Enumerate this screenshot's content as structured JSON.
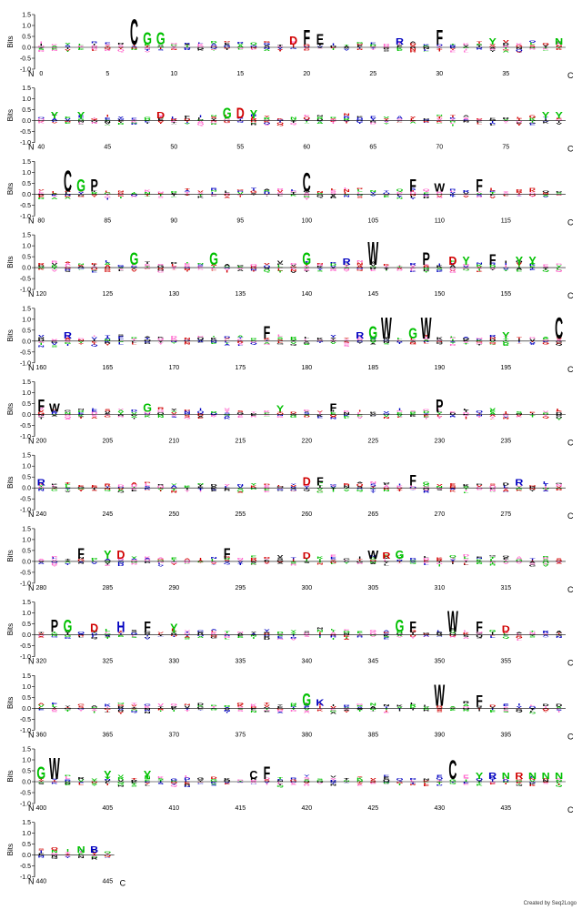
{
  "chart_data": {
    "type": "sequence-logo",
    "ylabel": "Bits",
    "y_ticks": [
      "1.5",
      "1.0",
      "0.5",
      "0.0",
      "-0.5",
      "-1.0"
    ],
    "ylim": [
      -1.0,
      1.5
    ],
    "n_label": "N",
    "c_label": "C",
    "positions_per_row": 40,
    "total_positions": 446,
    "rows": [
      {
        "start": 0,
        "labels": [
          "0",
          "5",
          "10",
          "15",
          "20",
          "25",
          "30",
          "35"
        ],
        "major": [
          {
            "pos": 7,
            "letter": "C",
            "bits": 1.2,
            "color": "#000000"
          },
          {
            "pos": 8,
            "letter": "G",
            "bits": 0.6,
            "color": "#00c000"
          },
          {
            "pos": 9,
            "letter": "G",
            "bits": 0.6,
            "color": "#00c000"
          },
          {
            "pos": 19,
            "letter": "D",
            "bits": 0.4,
            "color": "#d00000"
          },
          {
            "pos": 20,
            "letter": "F",
            "bits": 0.7,
            "color": "#000000"
          },
          {
            "pos": 21,
            "letter": "E",
            "bits": 0.5,
            "color": "#000000"
          },
          {
            "pos": 27,
            "letter": "R",
            "bits": 0.3,
            "color": "#0000c0"
          },
          {
            "pos": 30,
            "letter": "F",
            "bits": 0.7,
            "color": "#000000"
          },
          {
            "pos": 34,
            "letter": "Y",
            "bits": 0.3,
            "color": "#00c000"
          },
          {
            "pos": 39,
            "letter": "N",
            "bits": 0.3,
            "color": "#00c000"
          }
        ]
      },
      {
        "start": 40,
        "labels": [
          "40",
          "45",
          "50",
          "55",
          "60",
          "65",
          "70",
          "75"
        ],
        "major": [
          {
            "pos": 41,
            "letter": "Y",
            "bits": 0.3,
            "color": "#00c000"
          },
          {
            "pos": 43,
            "letter": "Y",
            "bits": 0.3,
            "color": "#00c000"
          },
          {
            "pos": 49,
            "letter": "D",
            "bits": 0.3,
            "color": "#d00000"
          },
          {
            "pos": 54,
            "letter": "G",
            "bits": 0.5,
            "color": "#00c000"
          },
          {
            "pos": 55,
            "letter": "D",
            "bits": 0.5,
            "color": "#d00000"
          },
          {
            "pos": 56,
            "letter": "Y",
            "bits": 0.4,
            "color": "#00c000"
          },
          {
            "pos": 78,
            "letter": "Y",
            "bits": 0.3,
            "color": "#00c000"
          },
          {
            "pos": 79,
            "letter": "Y",
            "bits": 0.3,
            "color": "#00c000"
          }
        ]
      },
      {
        "start": 80,
        "labels": [
          "80",
          "85",
          "90",
          "95",
          "100",
          "105",
          "110",
          "115"
        ],
        "major": [
          {
            "pos": 82,
            "letter": "C",
            "bits": 1.0,
            "color": "#000000"
          },
          {
            "pos": 83,
            "letter": "G",
            "bits": 0.6,
            "color": "#00c000"
          },
          {
            "pos": 84,
            "letter": "P",
            "bits": 0.6,
            "color": "#000000"
          },
          {
            "pos": 100,
            "letter": "C",
            "bits": 0.9,
            "color": "#000000"
          },
          {
            "pos": 108,
            "letter": "F",
            "bits": 0.6,
            "color": "#000000"
          },
          {
            "pos": 110,
            "letter": "W",
            "bits": 0.4,
            "color": "#000000"
          },
          {
            "pos": 113,
            "letter": "F",
            "bits": 0.6,
            "color": "#000000"
          }
        ]
      },
      {
        "start": 120,
        "labels": [
          "120",
          "125",
          "130",
          "135",
          "140",
          "145",
          "150",
          "155"
        ],
        "major": [
          {
            "pos": 127,
            "letter": "G",
            "bits": 0.6,
            "color": "#00c000"
          },
          {
            "pos": 133,
            "letter": "G",
            "bits": 0.6,
            "color": "#00c000"
          },
          {
            "pos": 140,
            "letter": "G",
            "bits": 0.6,
            "color": "#00c000"
          },
          {
            "pos": 143,
            "letter": "R",
            "bits": 0.3,
            "color": "#0000c0"
          },
          {
            "pos": 145,
            "letter": "W",
            "bits": 1.1,
            "color": "#000000"
          },
          {
            "pos": 149,
            "letter": "P",
            "bits": 0.6,
            "color": "#000000"
          },
          {
            "pos": 151,
            "letter": "D",
            "bits": 0.4,
            "color": "#d00000"
          },
          {
            "pos": 152,
            "letter": "Y",
            "bits": 0.4,
            "color": "#00c000"
          },
          {
            "pos": 154,
            "letter": "F",
            "bits": 0.5,
            "color": "#000000"
          },
          {
            "pos": 156,
            "letter": "Y",
            "bits": 0.4,
            "color": "#00c000"
          },
          {
            "pos": 157,
            "letter": "Y",
            "bits": 0.4,
            "color": "#00c000"
          }
        ]
      },
      {
        "start": 160,
        "labels": [
          "160",
          "165",
          "170",
          "175",
          "180",
          "185",
          "190",
          "195"
        ],
        "major": [
          {
            "pos": 162,
            "letter": "R",
            "bits": 0.3,
            "color": "#0000c0"
          },
          {
            "pos": 177,
            "letter": "F",
            "bits": 0.6,
            "color": "#000000"
          },
          {
            "pos": 184,
            "letter": "R",
            "bits": 0.3,
            "color": "#0000c0"
          },
          {
            "pos": 185,
            "letter": "G",
            "bits": 0.6,
            "color": "#00c000"
          },
          {
            "pos": 186,
            "letter": "W",
            "bits": 1.0,
            "color": "#000000"
          },
          {
            "pos": 188,
            "letter": "G",
            "bits": 0.5,
            "color": "#00c000"
          },
          {
            "pos": 189,
            "letter": "W",
            "bits": 1.0,
            "color": "#000000"
          },
          {
            "pos": 195,
            "letter": "Y",
            "bits": 0.3,
            "color": "#00c000"
          },
          {
            "pos": 199,
            "letter": "C",
            "bits": 1.0,
            "color": "#000000"
          }
        ]
      },
      {
        "start": 200,
        "labels": [
          "200",
          "205",
          "210",
          "215",
          "220",
          "225",
          "230",
          "235"
        ],
        "major": [
          {
            "pos": 200,
            "letter": "F",
            "bits": 0.6,
            "color": "#000000"
          },
          {
            "pos": 201,
            "letter": "W",
            "bits": 0.4,
            "color": "#000000"
          },
          {
            "pos": 208,
            "letter": "G",
            "bits": 0.4,
            "color": "#00c000"
          },
          {
            "pos": 218,
            "letter": "Y",
            "bits": 0.3,
            "color": "#00c000"
          },
          {
            "pos": 222,
            "letter": "F",
            "bits": 0.4,
            "color": "#000000"
          },
          {
            "pos": 230,
            "letter": "P",
            "bits": 0.6,
            "color": "#000000"
          }
        ]
      },
      {
        "start": 240,
        "labels": [
          "240",
          "245",
          "250",
          "255",
          "260",
          "265",
          "270",
          "275"
        ],
        "major": [
          {
            "pos": 240,
            "letter": "R",
            "bits": 0.3,
            "color": "#0000c0"
          },
          {
            "pos": 260,
            "letter": "D",
            "bits": 0.4,
            "color": "#d00000"
          },
          {
            "pos": 261,
            "letter": "F",
            "bits": 0.4,
            "color": "#000000"
          },
          {
            "pos": 268,
            "letter": "F",
            "bits": 0.5,
            "color": "#000000"
          },
          {
            "pos": 276,
            "letter": "R",
            "bits": 0.3,
            "color": "#0000c0"
          }
        ]
      },
      {
        "start": 280,
        "labels": [
          "280",
          "285",
          "290",
          "295",
          "300",
          "305",
          "310",
          "315"
        ],
        "major": [
          {
            "pos": 283,
            "letter": "F",
            "bits": 0.5,
            "color": "#000000"
          },
          {
            "pos": 285,
            "letter": "Y",
            "bits": 0.4,
            "color": "#00c000"
          },
          {
            "pos": 286,
            "letter": "D",
            "bits": 0.4,
            "color": "#d00000"
          },
          {
            "pos": 294,
            "letter": "F",
            "bits": 0.5,
            "color": "#000000"
          },
          {
            "pos": 300,
            "letter": "D",
            "bits": 0.3,
            "color": "#d00000"
          },
          {
            "pos": 305,
            "letter": "W",
            "bits": 0.4,
            "color": "#000000"
          },
          {
            "pos": 306,
            "letter": "R",
            "bits": 0.3,
            "color": "#d00000"
          },
          {
            "pos": 307,
            "letter": "G",
            "bits": 0.4,
            "color": "#00c000"
          }
        ]
      },
      {
        "start": 320,
        "labels": [
          "320",
          "325",
          "330",
          "335",
          "340",
          "345",
          "350",
          "355"
        ],
        "major": [
          {
            "pos": 321,
            "letter": "P",
            "bits": 0.6,
            "color": "#000000"
          },
          {
            "pos": 322,
            "letter": "G",
            "bits": 0.6,
            "color": "#00c000"
          },
          {
            "pos": 324,
            "letter": "D",
            "bits": 0.4,
            "color": "#d00000"
          },
          {
            "pos": 326,
            "letter": "H",
            "bits": 0.5,
            "color": "#0000c0"
          },
          {
            "pos": 328,
            "letter": "F",
            "bits": 0.5,
            "color": "#000000"
          },
          {
            "pos": 330,
            "letter": "Y",
            "bits": 0.4,
            "color": "#00c000"
          },
          {
            "pos": 347,
            "letter": "G",
            "bits": 0.6,
            "color": "#00c000"
          },
          {
            "pos": 348,
            "letter": "F",
            "bits": 0.5,
            "color": "#000000"
          },
          {
            "pos": 351,
            "letter": "W",
            "bits": 1.0,
            "color": "#000000"
          },
          {
            "pos": 353,
            "letter": "F",
            "bits": 0.5,
            "color": "#000000"
          },
          {
            "pos": 355,
            "letter": "D",
            "bits": 0.3,
            "color": "#d00000"
          }
        ]
      },
      {
        "start": 360,
        "labels": [
          "360",
          "365",
          "370",
          "375",
          "380",
          "385",
          "390",
          "395"
        ],
        "major": [
          {
            "pos": 380,
            "letter": "G",
            "bits": 0.6,
            "color": "#00c000"
          },
          {
            "pos": 381,
            "letter": "K",
            "bits": 0.3,
            "color": "#0000c0"
          },
          {
            "pos": 390,
            "letter": "W",
            "bits": 1.0,
            "color": "#000000"
          },
          {
            "pos": 393,
            "letter": "F",
            "bits": 0.5,
            "color": "#000000"
          }
        ]
      },
      {
        "start": 400,
        "labels": [
          "400",
          "405",
          "410",
          "415",
          "420",
          "425",
          "430",
          "435"
        ],
        "major": [
          {
            "pos": 400,
            "letter": "G",
            "bits": 0.6,
            "color": "#00c000"
          },
          {
            "pos": 401,
            "letter": "W",
            "bits": 1.0,
            "color": "#000000"
          },
          {
            "pos": 405,
            "letter": "Y",
            "bits": 0.4,
            "color": "#00c000"
          },
          {
            "pos": 408,
            "letter": "Y",
            "bits": 0.4,
            "color": "#00c000"
          },
          {
            "pos": 416,
            "letter": "C",
            "bits": 0.4,
            "color": "#000000"
          },
          {
            "pos": 417,
            "letter": "F",
            "bits": 0.6,
            "color": "#000000"
          },
          {
            "pos": 431,
            "letter": "C",
            "bits": 0.9,
            "color": "#000000"
          },
          {
            "pos": 433,
            "letter": "Y",
            "bits": 0.3,
            "color": "#00c000"
          },
          {
            "pos": 434,
            "letter": "R",
            "bits": 0.3,
            "color": "#0000c0"
          },
          {
            "pos": 435,
            "letter": "N",
            "bits": 0.3,
            "color": "#00c000"
          },
          {
            "pos": 436,
            "letter": "R",
            "bits": 0.3,
            "color": "#d00000"
          },
          {
            "pos": 437,
            "letter": "N",
            "bits": 0.3,
            "color": "#00c000"
          },
          {
            "pos": 438,
            "letter": "N",
            "bits": 0.3,
            "color": "#00c000"
          },
          {
            "pos": 439,
            "letter": "N",
            "bits": 0.3,
            "color": "#00c000"
          }
        ]
      },
      {
        "start": 440,
        "labels": [
          "440",
          "445"
        ],
        "length": 6,
        "major": [
          {
            "pos": 443,
            "letter": "N",
            "bits": 0.3,
            "color": "#00c000"
          },
          {
            "pos": 444,
            "letter": "B",
            "bits": 0.3,
            "color": "#0000c0"
          }
        ]
      }
    ],
    "filler_letters": [
      "L",
      "V",
      "E",
      "S",
      "T",
      "K",
      "R",
      "N",
      "Q",
      "I",
      "A",
      "Y",
      "D",
      "G"
    ],
    "palette": {
      "hydrophobic": "#000000",
      "polar": "#00c000",
      "basic": "#0000c0",
      "acidic": "#d00000",
      "other": "#ff66cc"
    }
  },
  "credit": "Created by Seq2Logo"
}
